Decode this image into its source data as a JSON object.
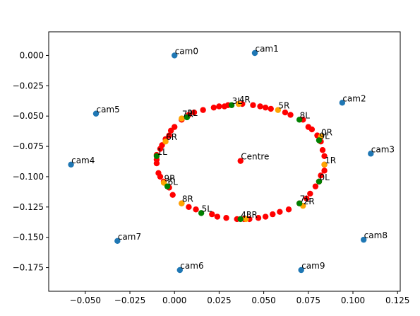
{
  "chart_data": {
    "type": "scatter",
    "title": "",
    "xlabel": "",
    "ylabel": "",
    "xlim": [
      -0.0705,
      0.1265
    ],
    "ylim": [
      -0.1945,
      0.0195
    ],
    "x_ticks": [
      -0.05,
      -0.025,
      0.0,
      0.025,
      0.05,
      0.075,
      0.1,
      0.125
    ],
    "x_tick_labels": [
      "−0.050",
      "−0.025",
      "0.000",
      "0.025",
      "0.050",
      "0.075",
      "0.100",
      "0.125"
    ],
    "y_ticks": [
      0.0,
      -0.025,
      -0.05,
      -0.075,
      -0.1,
      -0.125,
      -0.15,
      -0.175
    ],
    "y_tick_labels": [
      "0.000",
      "−0.025",
      "−0.050",
      "−0.075",
      "−0.100",
      "−0.125",
      "−0.150",
      "−0.175"
    ],
    "grid": false,
    "series": [
      {
        "color": "#1f77b4",
        "points": [
          {
            "label": "cam0",
            "x": 0.0,
            "y": 0.0
          },
          {
            "label": "cam1",
            "x": 0.045,
            "y": 0.002
          },
          {
            "label": "cam2",
            "x": 0.094,
            "y": -0.039
          },
          {
            "label": "cam3",
            "x": 0.11,
            "y": -0.081
          },
          {
            "label": "cam4",
            "x": -0.058,
            "y": -0.09
          },
          {
            "label": "cam5",
            "x": -0.044,
            "y": -0.048
          },
          {
            "label": "cam6",
            "x": 0.003,
            "y": -0.177
          },
          {
            "label": "cam7",
            "x": -0.032,
            "y": -0.153
          },
          {
            "label": "cam8",
            "x": 0.106,
            "y": -0.152
          },
          {
            "label": "cam9",
            "x": 0.071,
            "y": -0.177
          }
        ]
      },
      {
        "color": "#ff0000",
        "points": [
          {
            "label": "Centre",
            "x": 0.037,
            "y": -0.087
          },
          {
            "x": 0.038,
            "y": -0.04
          },
          {
            "x": 0.044,
            "y": -0.041
          },
          {
            "x": 0.048,
            "y": -0.042
          },
          {
            "x": 0.051,
            "y": -0.043
          },
          {
            "x": 0.054,
            "y": -0.044
          },
          {
            "x": 0.062,
            "y": -0.047
          },
          {
            "x": 0.065,
            "y": -0.049
          },
          {
            "x": 0.072,
            "y": -0.053
          },
          {
            "x": 0.075,
            "y": -0.059
          },
          {
            "x": 0.077,
            "y": -0.061
          },
          {
            "x": 0.08,
            "y": -0.066
          },
          {
            "x": 0.082,
            "y": -0.071
          },
          {
            "x": 0.083,
            "y": -0.078
          },
          {
            "x": 0.084,
            "y": -0.083
          },
          {
            "x": 0.084,
            "y": -0.09
          },
          {
            "x": 0.084,
            "y": -0.095
          },
          {
            "x": 0.082,
            "y": -0.099
          },
          {
            "x": 0.081,
            "y": -0.104
          },
          {
            "x": 0.079,
            "y": -0.108
          },
          {
            "x": 0.076,
            "y": -0.114
          },
          {
            "x": 0.074,
            "y": -0.118
          },
          {
            "x": 0.07,
            "y": -0.122
          },
          {
            "x": 0.064,
            "y": -0.127
          },
          {
            "x": 0.059,
            "y": -0.129
          },
          {
            "x": 0.055,
            "y": -0.131
          },
          {
            "x": 0.051,
            "y": -0.133
          },
          {
            "x": 0.047,
            "y": -0.134
          },
          {
            "x": 0.042,
            "y": -0.135
          },
          {
            "x": 0.039,
            "y": -0.135
          },
          {
            "x": 0.035,
            "y": -0.135
          },
          {
            "x": 0.029,
            "y": -0.134
          },
          {
            "x": 0.024,
            "y": -0.133
          },
          {
            "x": 0.021,
            "y": -0.131
          },
          {
            "x": 0.012,
            "y": -0.127
          },
          {
            "x": 0.008,
            "y": -0.125
          },
          {
            "x": 0.004,
            "y": -0.122
          },
          {
            "x": -0.001,
            "y": -0.115
          },
          {
            "x": -0.003,
            "y": -0.109
          },
          {
            "x": -0.006,
            "y": -0.104
          },
          {
            "x": -0.008,
            "y": -0.1
          },
          {
            "x": -0.009,
            "y": -0.097
          },
          {
            "x": -0.01,
            "y": -0.089
          },
          {
            "x": -0.01,
            "y": -0.086
          },
          {
            "x": -0.01,
            "y": -0.082
          },
          {
            "x": -0.008,
            "y": -0.077
          },
          {
            "x": -0.007,
            "y": -0.074
          },
          {
            "x": -0.005,
            "y": -0.069
          },
          {
            "x": -0.003,
            "y": -0.066
          },
          {
            "x": -0.002,
            "y": -0.062
          },
          {
            "x": 0.0,
            "y": -0.059
          },
          {
            "x": 0.004,
            "y": -0.053
          },
          {
            "x": 0.008,
            "y": -0.049
          },
          {
            "x": 0.011,
            "y": -0.047
          },
          {
            "x": 0.016,
            "y": -0.045
          },
          {
            "x": 0.022,
            "y": -0.043
          },
          {
            "x": 0.025,
            "y": -0.042
          },
          {
            "x": 0.028,
            "y": -0.042
          },
          {
            "x": 0.03,
            "y": -0.041
          },
          {
            "x": 0.036,
            "y": -0.04
          }
        ]
      },
      {
        "color": "#ffa500",
        "points": [
          {
            "label": "4R",
            "x": 0.036,
            "y": -0.04
          },
          {
            "label": "5R",
            "x": 0.058,
            "y": -0.045
          },
          {
            "label": "0R",
            "x": 0.082,
            "y": -0.067
          },
          {
            "label": "1R",
            "x": 0.084,
            "y": -0.09
          },
          {
            "label": "2R",
            "x": 0.072,
            "y": -0.124
          },
          {
            "label": "3R",
            "x": 0.04,
            "y": -0.135
          },
          {
            "label": "8R",
            "x": 0.004,
            "y": -0.122
          },
          {
            "label": "9R",
            "x": -0.006,
            "y": -0.105
          },
          {
            "label": "6R",
            "x": -0.005,
            "y": -0.071
          },
          {
            "label": "7R",
            "x": 0.004,
            "y": -0.052
          }
        ]
      },
      {
        "color": "#008000",
        "points": [
          {
            "label": "3L",
            "x": 0.032,
            "y": -0.041
          },
          {
            "label": "8L",
            "x": 0.07,
            "y": -0.053
          },
          {
            "label": "9L",
            "x": 0.081,
            "y": -0.07
          },
          {
            "label": "0L",
            "x": 0.081,
            "y": -0.104
          },
          {
            "label": "7L",
            "x": 0.07,
            "y": -0.122
          },
          {
            "label": "4L",
            "x": 0.037,
            "y": -0.135
          },
          {
            "label": "5L",
            "x": 0.015,
            "y": -0.13
          },
          {
            "label": "6L",
            "x": -0.004,
            "y": -0.108
          },
          {
            "label": "1L",
            "x": -0.01,
            "y": -0.083
          },
          {
            "label": "2L",
            "x": 0.007,
            "y": -0.051
          }
        ]
      }
    ]
  }
}
